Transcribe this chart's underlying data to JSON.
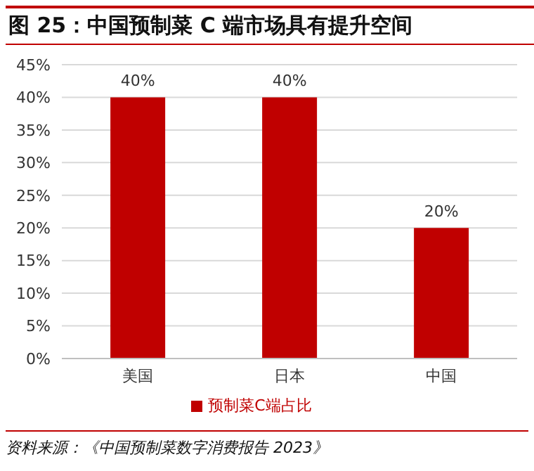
{
  "chart_data": {
    "type": "bar",
    "title": "图 25：中国预制菜 C 端市场具有提升空间",
    "categories": [
      "美国",
      "日本",
      "中国"
    ],
    "series": [
      {
        "name": "预制菜C端占比",
        "color": "#c00000",
        "values": [
          40,
          40,
          20
        ],
        "value_labels": [
          "40%",
          "40%",
          "20%"
        ]
      }
    ],
    "ylim": [
      0,
      45
    ],
    "yticks": [
      {
        "value": 0,
        "label": "0%"
      },
      {
        "value": 5,
        "label": "5%"
      },
      {
        "value": 10,
        "label": "10%"
      },
      {
        "value": 15,
        "label": "15%"
      },
      {
        "value": 20,
        "label": "20%"
      },
      {
        "value": 25,
        "label": "25%"
      },
      {
        "value": 30,
        "label": "30%"
      },
      {
        "value": 35,
        "label": "35%"
      },
      {
        "value": 40,
        "label": "40%"
      },
      {
        "value": 45,
        "label": "45%"
      }
    ],
    "grid": "y",
    "legend": "bottom",
    "annotations": [
      "资料来源：《中国预制菜数字消费报告 2023》"
    ]
  }
}
